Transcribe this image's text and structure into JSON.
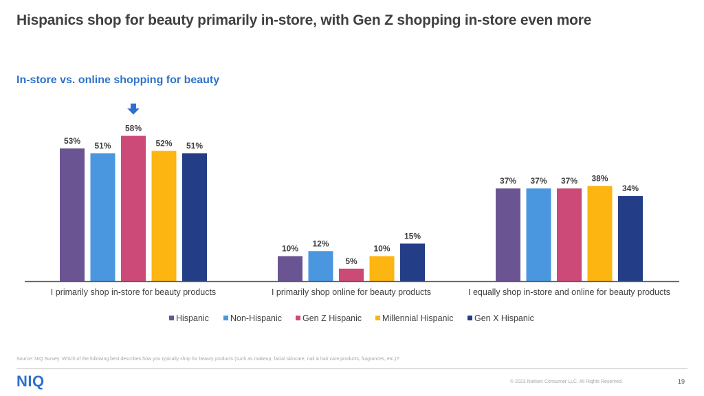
{
  "slide": {
    "title": "Hispanics shop for beauty primarily in-store, with Gen Z shopping in-store even more",
    "source": "Source: NIQ Survey: Which of the following best describes how you typically shop for beauty products (such as makeup, facial skincare, nail & hair care products, fragrances, etc.)?",
    "logo": "NIQ",
    "copyright": "© 2023 Nielsen Consumer LLC. All Rights Reserved.",
    "page_number": "19"
  },
  "chart_data": {
    "type": "bar",
    "title": "In-store vs. online shopping for beauty",
    "categories": [
      "I primarily shop in-store for beauty products",
      "I primarily shop online for beauty products",
      "I equally shop in-store and online for beauty products"
    ],
    "series": [
      {
        "name": "Hispanic",
        "color": "#6a5592",
        "values": [
          53,
          10,
          37
        ],
        "labels": [
          "53%",
          "10%",
          "37%"
        ]
      },
      {
        "name": "Non-Hispanic",
        "color": "#4a97df",
        "values": [
          51,
          12,
          37
        ],
        "labels": [
          "51%",
          "12%",
          "37%"
        ]
      },
      {
        "name": "Gen Z Hispanic",
        "color": "#cc4a78",
        "values": [
          58,
          5,
          37
        ],
        "labels": [
          "58%",
          "5%",
          "37%"
        ]
      },
      {
        "name": "Millennial Hispanic",
        "color": "#fcb511",
        "values": [
          52,
          10,
          38
        ],
        "labels": [
          "52%",
          "10%",
          "38%"
        ]
      },
      {
        "name": "Gen X Hispanic",
        "color": "#233e86",
        "values": [
          51,
          15,
          34
        ],
        "labels": [
          "51%",
          "15%",
          "34%"
        ]
      }
    ],
    "ylim": [
      0,
      60
    ],
    "grid": false,
    "legend": "bottom",
    "highlight": {
      "series": "Gen Z Hispanic",
      "category": "I primarily shop in-store for beauty products",
      "marker": "down-arrow",
      "color": "#2e6fd1"
    }
  }
}
